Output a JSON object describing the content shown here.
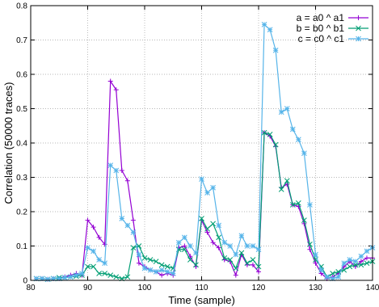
{
  "chart_data": {
    "type": "line",
    "title": "",
    "xlabel": "Time (sample)",
    "ylabel": "Correlation (50000 traces)",
    "xlim": [
      80,
      140
    ],
    "ylim": [
      0,
      0.8
    ],
    "x_ticks": [
      80,
      90,
      100,
      110,
      120,
      130,
      140
    ],
    "y_ticks": [
      0,
      0.1,
      0.2,
      0.3,
      0.4,
      0.5,
      0.6,
      0.7,
      0.8
    ],
    "grid": true,
    "legend_position": "top-right",
    "x": [
      81,
      82,
      83,
      84,
      85,
      86,
      87,
      88,
      89,
      90,
      91,
      92,
      93,
      94,
      95,
      96,
      97,
      98,
      99,
      100,
      101,
      102,
      103,
      104,
      105,
      106,
      107,
      108,
      109,
      110,
      111,
      112,
      113,
      114,
      115,
      116,
      117,
      118,
      119,
      120,
      121,
      122,
      123,
      124,
      125,
      126,
      127,
      128,
      129,
      130,
      131,
      132,
      133,
      134,
      135,
      136,
      137,
      138,
      139,
      140
    ],
    "series": [
      {
        "name": "a = a0 ^ a1",
        "color": "#9400d3",
        "marker": "plus",
        "values": [
          0.005,
          0.005,
          0.003,
          0.005,
          0.005,
          0.01,
          0.015,
          0.02,
          0.015,
          0.175,
          0.155,
          0.125,
          0.105,
          0.58,
          0.555,
          0.32,
          0.29,
          0.175,
          0.05,
          0.04,
          0.03,
          0.025,
          0.015,
          0.02,
          0.015,
          0.095,
          0.1,
          0.07,
          0.04,
          0.175,
          0.14,
          0.11,
          0.095,
          0.06,
          0.055,
          0.015,
          0.075,
          0.045,
          0.045,
          0.025,
          0.43,
          0.42,
          0.39,
          0.27,
          0.28,
          0.22,
          0.215,
          0.165,
          0.09,
          0.05,
          0.02,
          0.005,
          0.01,
          0.02,
          0.04,
          0.055,
          0.04,
          0.055,
          0.065,
          0.065
        ]
      },
      {
        "name": "b = b0 ^ b1",
        "color": "#009e73",
        "marker": "cross",
        "values": [
          0.005,
          0.005,
          0.003,
          0.005,
          0.008,
          0.008,
          0.01,
          0.012,
          0.015,
          0.04,
          0.04,
          0.02,
          0.02,
          0.015,
          0.01,
          0.005,
          0.01,
          0.095,
          0.1,
          0.065,
          0.06,
          0.055,
          0.045,
          0.04,
          0.035,
          0.09,
          0.09,
          0.06,
          0.045,
          0.18,
          0.15,
          0.165,
          0.125,
          0.065,
          0.06,
          0.035,
          0.08,
          0.05,
          0.06,
          0.04,
          0.43,
          0.425,
          0.395,
          0.265,
          0.29,
          0.22,
          0.225,
          0.175,
          0.105,
          0.06,
          0.04,
          0.01,
          0.02,
          0.025,
          0.03,
          0.04,
          0.045,
          0.045,
          0.05,
          0.055
        ]
      },
      {
        "name": "c = c0 ^ c1",
        "color": "#56b4e9",
        "marker": "asterisk",
        "values": [
          0.005,
          0.005,
          0.003,
          0.005,
          0.005,
          0.008,
          0.01,
          0.015,
          0.02,
          0.095,
          0.085,
          0.06,
          0.05,
          0.335,
          0.32,
          0.18,
          0.16,
          0.14,
          0.075,
          0.035,
          0.03,
          0.025,
          0.03,
          0.025,
          0.02,
          0.11,
          0.125,
          0.1,
          0.08,
          0.295,
          0.255,
          0.27,
          0.16,
          0.11,
          0.1,
          0.075,
          0.13,
          0.1,
          0.1,
          0.09,
          0.745,
          0.73,
          0.67,
          0.49,
          0.5,
          0.44,
          0.41,
          0.37,
          0.22,
          0.075,
          0.03,
          0.01,
          0.005,
          0.01,
          0.05,
          0.06,
          0.055,
          0.07,
          0.085,
          0.095
        ]
      }
    ]
  }
}
